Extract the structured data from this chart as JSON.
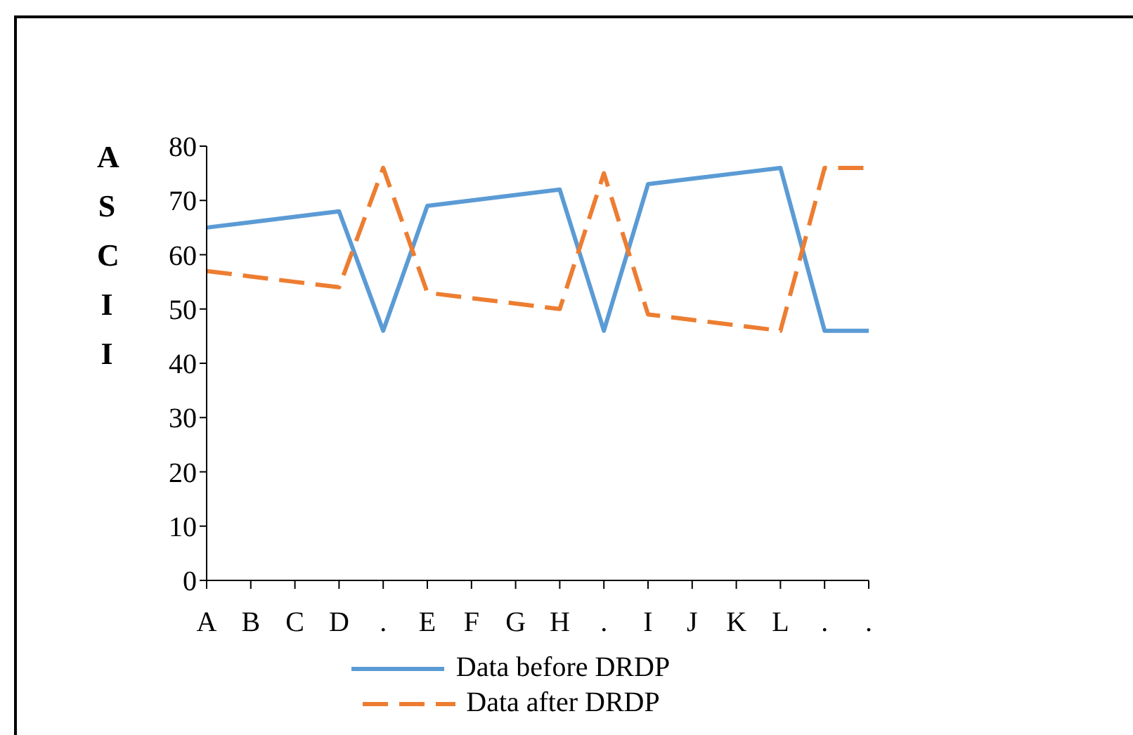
{
  "chart_data": {
    "type": "line",
    "ylabel": "ASCII",
    "categories": [
      "A",
      "B",
      "C",
      "D",
      ".",
      "E",
      "F",
      "G",
      "H",
      ".",
      "I",
      "J",
      "K",
      "L",
      ".",
      "."
    ],
    "series": [
      {
        "name": "Data before DRDP",
        "color": "#5b9bd5",
        "line_style": "solid",
        "values": [
          65,
          66,
          67,
          68,
          46,
          69,
          70,
          71,
          72,
          46,
          73,
          74,
          75,
          76,
          46,
          46
        ]
      },
      {
        "name": "Data after DRDP",
        "color": "#ed7d31",
        "line_style": "dashed",
        "values": [
          57,
          56,
          55,
          54,
          76,
          53,
          52,
          51,
          50,
          75,
          49,
          48,
          47,
          46,
          76,
          76
        ]
      }
    ],
    "ylim": [
      0,
      80
    ],
    "yticks": [
      0,
      10,
      20,
      30,
      40,
      50,
      60,
      70,
      80
    ],
    "grid": false,
    "legend": "bottom",
    "marker": "none"
  }
}
